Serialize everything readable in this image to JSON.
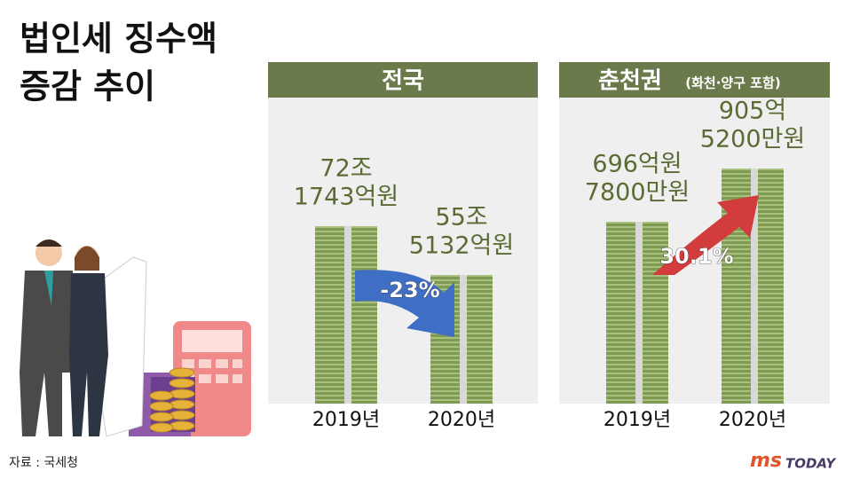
{
  "title": [
    "법인세 징수액",
    "증감 추이"
  ],
  "panels": [
    {
      "title": "전국",
      "change": "-23%",
      "items": [
        {
          "year": "2019년",
          "amount": [
            "72조",
            "1743억원"
          ]
        },
        {
          "year": "2020년",
          "amount": [
            "55조",
            "5132억원"
          ]
        }
      ]
    },
    {
      "title": "춘천권",
      "subtitle": "(화천·양구 포함)",
      "change": "30.1%",
      "items": [
        {
          "year": "2019년",
          "amount": [
            "696억원",
            "7800만원"
          ]
        },
        {
          "year": "2020년",
          "amount": [
            "905억",
            "5200만원"
          ]
        }
      ]
    }
  ],
  "source": "자료 : 국세청",
  "logo": {
    "mark": "ms",
    "text": "TODAY"
  }
}
